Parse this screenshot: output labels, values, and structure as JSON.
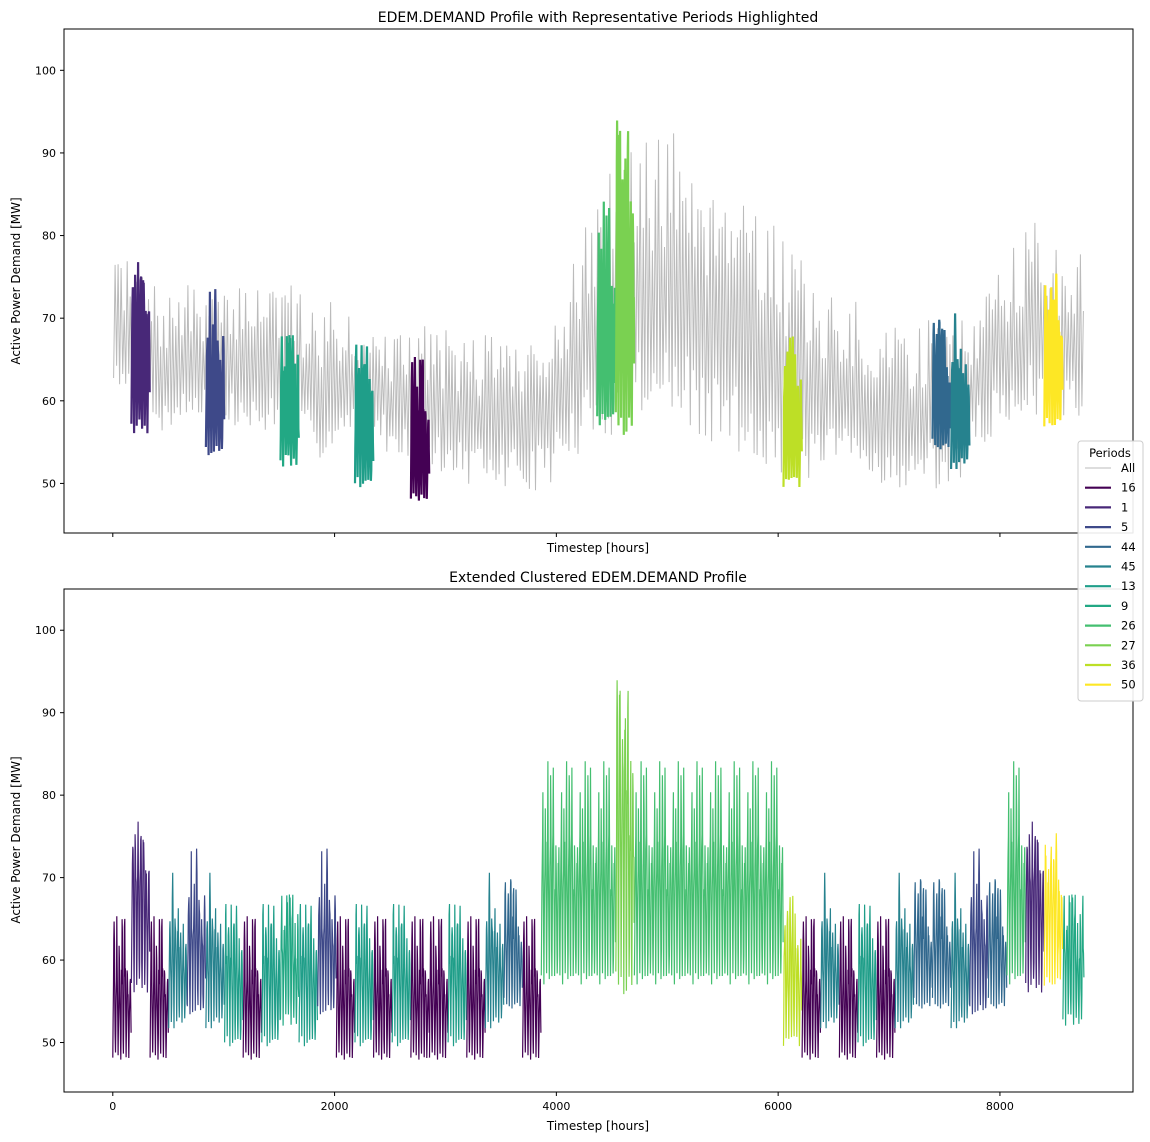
{
  "chart_data": [
    {
      "type": "line",
      "title": "EDEM.DEMAND Profile with Representative Periods Highlighted",
      "xlabel": "Timestep [hours]",
      "ylabel": "Active Power Demand [MW]",
      "xlim": [
        -440,
        9200
      ],
      "ylim": [
        44,
        105
      ],
      "x_ticks": [
        0,
        2000,
        4000,
        6000,
        8000
      ],
      "x_tick_labels_visible": false,
      "y_ticks": [
        50,
        60,
        70,
        80,
        90,
        100
      ],
      "y_tick_labels": [
        "50",
        "60",
        "70",
        "80",
        "90",
        "100"
      ],
      "grid": false,
      "background_series": {
        "name": "All",
        "color": "#bbbbbb",
        "x_range": [
          0,
          8760
        ],
        "daily_min": [
          61,
          58,
          57,
          55,
          56,
          57,
          58,
          56,
          55,
          54,
          55,
          53,
          53,
          52,
          53,
          54,
          55,
          54,
          53,
          52,
          51,
          50,
          50,
          49,
          48,
          48,
          49,
          48,
          49,
          50,
          51,
          52,
          54,
          56,
          57,
          56,
          56,
          54,
          53,
          52,
          52,
          51,
          51,
          50,
          49,
          49,
          49,
          50,
          51,
          50,
          49,
          48,
          47,
          49,
          48,
          49,
          52,
          54,
          55,
          56,
          57,
          58,
          56,
          57
        ],
        "daily_max": [
          77,
          76,
          74,
          73,
          74,
          74,
          73,
          73,
          75,
          76,
          75,
          74,
          73,
          72,
          72,
          72,
          70,
          69,
          68,
          68,
          70,
          69,
          68,
          68,
          69,
          69,
          68,
          68,
          70,
          74,
          78,
          84,
          88,
          90,
          91,
          92,
          93,
          92,
          91,
          90,
          90,
          88,
          85,
          82,
          80,
          77,
          74,
          73,
          72,
          70,
          69,
          69,
          70,
          70,
          70,
          71,
          72,
          74,
          76,
          80,
          82,
          80,
          79,
          78
        ]
      },
      "series": [
        {
          "name": "16",
          "color": "#440154",
          "x_start": 2688,
          "x_end": 2856,
          "min": 47.5,
          "max": 66.5
        },
        {
          "name": "1",
          "color": "#482878",
          "x_start": 168,
          "x_end": 336,
          "min": 56,
          "max": 80.5
        },
        {
          "name": "5",
          "color": "#3e4989",
          "x_start": 840,
          "x_end": 1008,
          "min": 53,
          "max": 75
        },
        {
          "name": "44",
          "color": "#31688e",
          "x_start": 7392,
          "x_end": 7560,
          "min": 54,
          "max": 72
        },
        {
          "name": "45",
          "color": "#26828e",
          "x_start": 7560,
          "x_end": 7728,
          "min": 51.5,
          "max": 71
        },
        {
          "name": "13",
          "color": "#1f9e89",
          "x_start": 2184,
          "x_end": 2352,
          "min": 49.5,
          "max": 68.5
        },
        {
          "name": "9",
          "color": "#22a884",
          "x_start": 1512,
          "x_end": 1680,
          "min": 52,
          "max": 71.5
        },
        {
          "name": "26",
          "color": "#44bf70",
          "x_start": 4368,
          "x_end": 4536,
          "min": 56.5,
          "max": 86
        },
        {
          "name": "27",
          "color": "#7ad151",
          "x_start": 4536,
          "x_end": 4704,
          "min": 55.5,
          "max": 100
        },
        {
          "name": "36",
          "color": "#bddf26",
          "x_start": 6048,
          "x_end": 6216,
          "min": 49.5,
          "max": 70
        },
        {
          "name": "50",
          "color": "#fde725",
          "x_start": 8400,
          "x_end": 8568,
          "min": 56.5,
          "max": 78
        }
      ],
      "legend": {
        "title": "Periods",
        "placement": "center-right (outside)"
      }
    },
    {
      "type": "line",
      "title": "Extended Clustered EDEM.DEMAND Profile",
      "xlabel": "Timestep [hours]",
      "ylabel": "Active Power Demand [MW]",
      "xlim": [
        -440,
        9200
      ],
      "ylim": [
        44,
        105
      ],
      "x_ticks": [
        0,
        2000,
        4000,
        6000,
        8000
      ],
      "x_tick_labels": [
        "0",
        "2000",
        "4000",
        "6000",
        "8000"
      ],
      "y_ticks": [
        50,
        60,
        70,
        80,
        90,
        100
      ],
      "y_tick_labels": [
        "50",
        "60",
        "70",
        "80",
        "90",
        "100"
      ],
      "grid": false,
      "segments": [
        {
          "period": "16",
          "x_start": 0,
          "x_end": 168
        },
        {
          "period": "1",
          "x_start": 168,
          "x_end": 336
        },
        {
          "period": "16",
          "x_start": 336,
          "x_end": 504
        },
        {
          "period": "45",
          "x_start": 504,
          "x_end": 672
        },
        {
          "period": "5",
          "x_start": 672,
          "x_end": 840
        },
        {
          "period": "45",
          "x_start": 840,
          "x_end": 1008
        },
        {
          "period": "13",
          "x_start": 1008,
          "x_end": 1176
        },
        {
          "period": "16",
          "x_start": 1176,
          "x_end": 1344
        },
        {
          "period": "13",
          "x_start": 1344,
          "x_end": 1512
        },
        {
          "period": "9",
          "x_start": 1512,
          "x_end": 1680
        },
        {
          "period": "13",
          "x_start": 1680,
          "x_end": 1848
        },
        {
          "period": "5",
          "x_start": 1848,
          "x_end": 2016
        },
        {
          "period": "16",
          "x_start": 2016,
          "x_end": 2184
        },
        {
          "period": "13",
          "x_start": 2184,
          "x_end": 2352
        },
        {
          "period": "16",
          "x_start": 2352,
          "x_end": 2520
        },
        {
          "period": "13",
          "x_start": 2520,
          "x_end": 2688
        },
        {
          "period": "16",
          "x_start": 2688,
          "x_end": 2856
        },
        {
          "period": "16",
          "x_start": 2856,
          "x_end": 3024
        },
        {
          "period": "13",
          "x_start": 3024,
          "x_end": 3192
        },
        {
          "period": "16",
          "x_start": 3192,
          "x_end": 3360
        },
        {
          "period": "45",
          "x_start": 3360,
          "x_end": 3528
        },
        {
          "period": "44",
          "x_start": 3528,
          "x_end": 3696
        },
        {
          "period": "16",
          "x_start": 3696,
          "x_end": 3864
        },
        {
          "period": "26",
          "x_start": 3864,
          "x_end": 4536
        },
        {
          "period": "27",
          "x_start": 4536,
          "x_end": 4704
        },
        {
          "period": "26",
          "x_start": 4704,
          "x_end": 6048
        },
        {
          "period": "36",
          "x_start": 6048,
          "x_end": 6216
        },
        {
          "period": "16",
          "x_start": 6216,
          "x_end": 6384
        },
        {
          "period": "45",
          "x_start": 6384,
          "x_end": 6552
        },
        {
          "period": "16",
          "x_start": 6552,
          "x_end": 6720
        },
        {
          "period": "13",
          "x_start": 6720,
          "x_end": 6888
        },
        {
          "period": "16",
          "x_start": 6888,
          "x_end": 7056
        },
        {
          "period": "45",
          "x_start": 7056,
          "x_end": 7224
        },
        {
          "period": "44",
          "x_start": 7224,
          "x_end": 7392
        },
        {
          "period": "44",
          "x_start": 7392,
          "x_end": 7560
        },
        {
          "period": "45",
          "x_start": 7560,
          "x_end": 7728
        },
        {
          "period": "5",
          "x_start": 7728,
          "x_end": 7896
        },
        {
          "period": "44",
          "x_start": 7896,
          "x_end": 8064
        },
        {
          "period": "26",
          "x_start": 8064,
          "x_end": 8232
        },
        {
          "period": "1",
          "x_start": 8232,
          "x_end": 8400
        },
        {
          "period": "50",
          "x_start": 8400,
          "x_end": 8568
        },
        {
          "period": "9",
          "x_start": 8568,
          "x_end": 8760
        }
      ]
    }
  ]
}
